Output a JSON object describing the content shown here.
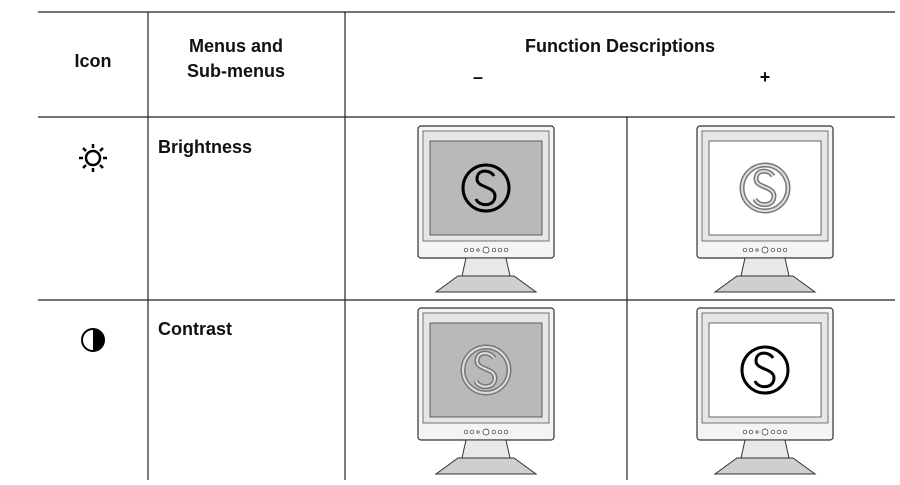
{
  "table": {
    "header": {
      "icon": "Icon",
      "menus": [
        "Menus and",
        "Sub-menus"
      ],
      "functions": "Function Descriptions",
      "minus": "–",
      "plus": "+"
    },
    "rows": [
      {
        "menu": "Brightness"
      },
      {
        "menu": "Contrast"
      }
    ]
  }
}
